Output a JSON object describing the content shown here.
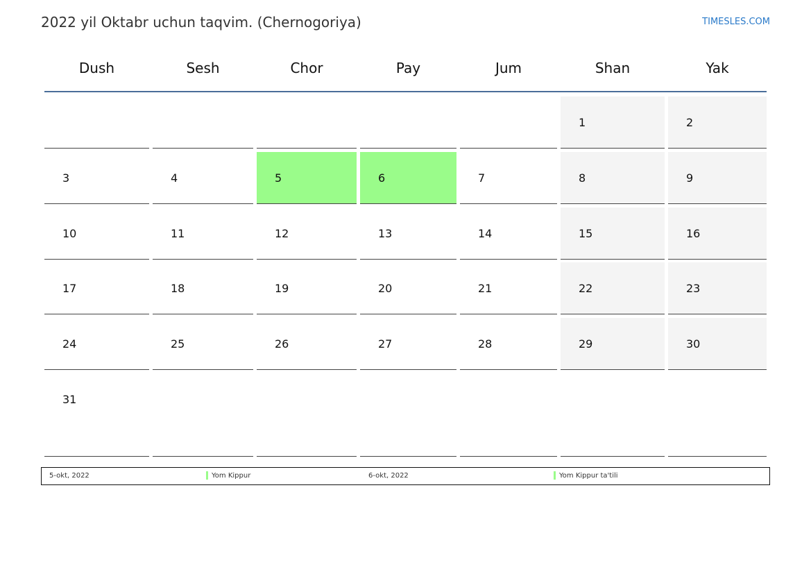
{
  "title": "2022 yil Oktabr uchun taqvim. (Chernogoriya)",
  "brand": "TIMESLES.COM",
  "colors": {
    "holiday": "#9afc8a",
    "weekend": "#f4f4f4",
    "header_line": "#4a6d99",
    "brand": "#2a7ac9"
  },
  "weekdays": [
    "Dush",
    "Sesh",
    "Chor",
    "Pay",
    "Jum",
    "Shan",
    "Yak"
  ],
  "weeks": [
    [
      "",
      "",
      "",
      "",
      "",
      "1",
      "2"
    ],
    [
      "3",
      "4",
      "5",
      "6",
      "7",
      "8",
      "9"
    ],
    [
      "10",
      "11",
      "12",
      "13",
      "14",
      "15",
      "16"
    ],
    [
      "17",
      "18",
      "19",
      "20",
      "21",
      "22",
      "23"
    ],
    [
      "24",
      "25",
      "26",
      "27",
      "28",
      "29",
      "30"
    ],
    [
      "31",
      "",
      "",
      "",
      "",
      "",
      ""
    ]
  ],
  "holidays": [
    "5",
    "6"
  ],
  "legend": [
    {
      "date": "5-okt, 2022",
      "name": "Yom Kippur"
    },
    {
      "date": "6-okt, 2022",
      "name": "Yom Kippur ta'tili"
    }
  ]
}
